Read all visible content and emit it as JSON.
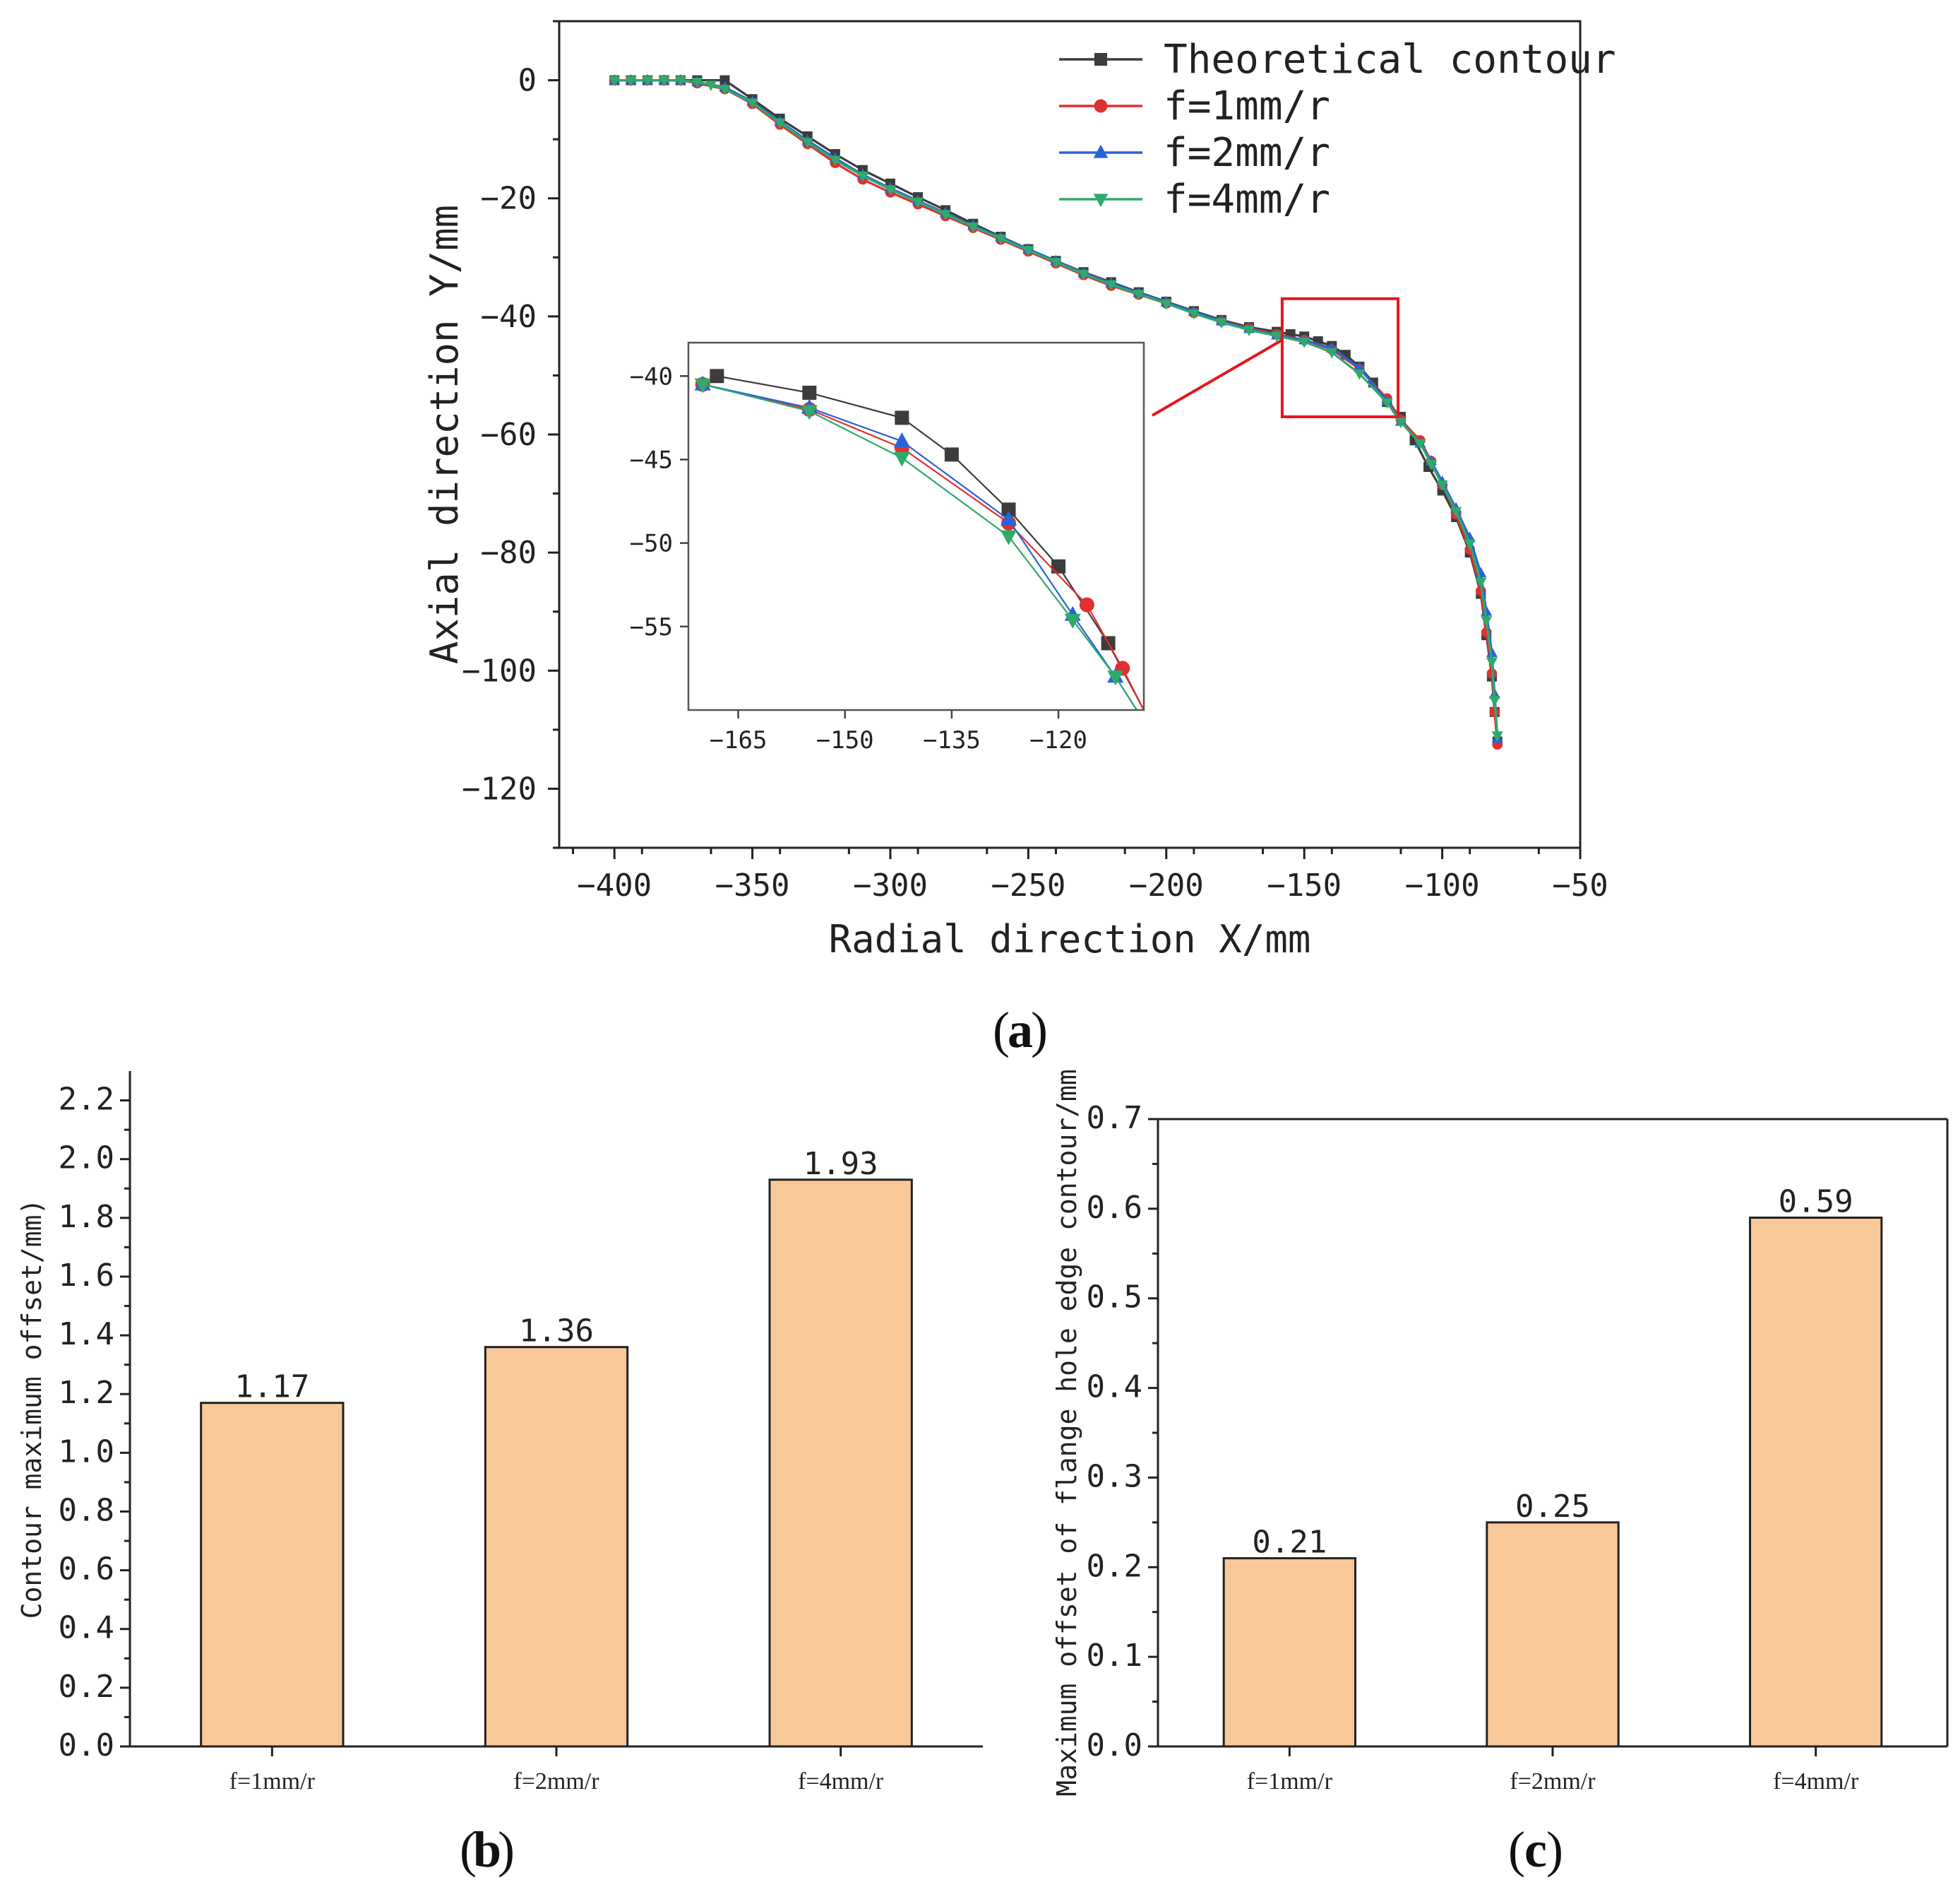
{
  "chart_data": [
    {
      "panel": "(a)",
      "panel_letter": "a",
      "type": "line",
      "xlabel": "Radial direction X/mm",
      "ylabel": "Axial direction Y/mm",
      "xlim": [
        -420,
        -50
      ],
      "ylim": [
        -130,
        10
      ],
      "xticks": [
        -400,
        -350,
        -300,
        -250,
        -200,
        -150,
        -100,
        -50
      ],
      "yticks": [
        0,
        -20,
        -40,
        -60,
        -80,
        -100,
        -120
      ],
      "legend_position": "top-right",
      "series": [
        {
          "name": "Theoretical contour",
          "color": "#3c3c3c",
          "marker": "square",
          "x": [
            -400,
            -394,
            -388,
            -382,
            -376,
            -370,
            -360,
            -350,
            -340,
            -330,
            -320,
            -310,
            -300,
            -290,
            -280,
            -270,
            -260,
            -250,
            -240,
            -230,
            -220,
            -210,
            -200,
            -190,
            -180,
            -170,
            -160,
            -155,
            -150,
            -145,
            -140,
            -135,
            -130,
            -125,
            -120,
            -115,
            -110,
            -105,
            -100,
            -95,
            -90,
            -86,
            -84,
            -82,
            -81,
            -80
          ],
          "y": [
            0,
            0,
            0,
            0,
            0,
            0,
            0,
            -3.2,
            -6.5,
            -9.5,
            -12.5,
            -15.2,
            -17.5,
            -19.8,
            -22,
            -24.3,
            -26.5,
            -28.6,
            -30.6,
            -32.5,
            -34.2,
            -35.9,
            -37.5,
            -39.1,
            -40.6,
            -41.8,
            -42.6,
            -43,
            -43.4,
            -44.2,
            -45,
            -46.5,
            -48.5,
            -51.2,
            -54.5,
            -57,
            -61,
            -65.5,
            -69.5,
            -74,
            -80,
            -87,
            -94,
            -101,
            -107,
            -112
          ]
        },
        {
          "name": "f=1mm/r",
          "color": "#e03030",
          "marker": "circle",
          "x": [
            -400,
            -394,
            -388,
            -382,
            -376,
            -370,
            -360,
            -350,
            -340,
            -330,
            -320,
            -310,
            -300,
            -290,
            -280,
            -270,
            -260,
            -250,
            -240,
            -230,
            -220,
            -210,
            -200,
            -190,
            -180,
            -170,
            -160,
            -150,
            -140,
            -130,
            -120,
            -115,
            -108,
            -104,
            -100,
            -95,
            -90,
            -86,
            -84,
            -82,
            -81,
            -80
          ],
          "y": [
            0,
            0,
            0,
            0,
            0,
            -0.5,
            -1.5,
            -4,
            -7.5,
            -10.8,
            -14,
            -16.8,
            -19,
            -21,
            -23,
            -25,
            -27,
            -29,
            -31,
            -33,
            -34.8,
            -36.3,
            -37.8,
            -39.4,
            -40.8,
            -42,
            -43,
            -44,
            -45.6,
            -48.9,
            -53.9,
            -57.5,
            -61,
            -64.5,
            -68.5,
            -73.5,
            -79.5,
            -86.5,
            -93.5,
            -100.5,
            -107,
            -112.5
          ]
        },
        {
          "name": "f=2mm/r",
          "color": "#2b63d6",
          "marker": "triangle-up",
          "x": [
            -400,
            -394,
            -388,
            -382,
            -376,
            -370,
            -360,
            -350,
            -340,
            -330,
            -320,
            -310,
            -300,
            -290,
            -280,
            -270,
            -260,
            -250,
            -240,
            -230,
            -220,
            -210,
            -200,
            -190,
            -180,
            -170,
            -160,
            -150,
            -140,
            -130,
            -120,
            -115,
            -108,
            -104,
            -100,
            -95,
            -90,
            -86,
            -84,
            -82,
            -81,
            -80
          ],
          "y": [
            0,
            0,
            0,
            0,
            0,
            -0.3,
            -1.2,
            -3.6,
            -7,
            -10.2,
            -13.2,
            -16,
            -18.3,
            -20.4,
            -22.5,
            -24.6,
            -26.6,
            -28.6,
            -30.6,
            -32.6,
            -34.4,
            -36,
            -37.6,
            -39.2,
            -40.8,
            -42.1,
            -43.2,
            -44,
            -45.4,
            -48.7,
            -54.3,
            -57.8,
            -61.5,
            -64.5,
            -68,
            -72.5,
            -77.5,
            -83.5,
            -90,
            -97,
            -104,
            -111.5
          ]
        },
        {
          "name": "f=4mm/r",
          "color": "#2eaa6a",
          "marker": "triangle-down",
          "x": [
            -400,
            -394,
            -388,
            -382,
            -376,
            -370,
            -365,
            -360,
            -350,
            -340,
            -330,
            -320,
            -310,
            -300,
            -290,
            -280,
            -270,
            -260,
            -250,
            -240,
            -230,
            -220,
            -210,
            -200,
            -190,
            -180,
            -170,
            -160,
            -150,
            -140,
            -130,
            -120,
            -115,
            -108,
            -104,
            -100,
            -95,
            -90,
            -86,
            -84,
            -82,
            -81,
            -80
          ],
          "y": [
            0,
            0,
            0,
            0,
            0,
            -0.3,
            -0.8,
            -1.5,
            -3.8,
            -7.2,
            -10.5,
            -13.5,
            -16.2,
            -18.5,
            -20.6,
            -22.7,
            -24.8,
            -26.8,
            -28.8,
            -30.8,
            -32.8,
            -34.6,
            -36.2,
            -37.8,
            -39.5,
            -41,
            -42.3,
            -43.3,
            -44.3,
            -46.1,
            -49.7,
            -54.6,
            -57.9,
            -61.5,
            -65,
            -68.5,
            -73,
            -78.5,
            -85,
            -91.5,
            -98.5,
            -105,
            -111
          ]
        }
      ],
      "inset": {
        "xlim": [
          -172,
          -108
        ],
        "ylim": [
          -60,
          -38
        ],
        "xticks": [
          -165,
          -150,
          -135,
          -120
        ],
        "yticks": [
          -40,
          -45,
          -50,
          -55
        ],
        "zoom_box": {
          "xlim": [
            -158,
            -116
          ],
          "ylim": [
            -57,
            -37
          ]
        },
        "series": [
          {
            "name": "Theoretical contour",
            "x": [
              -168,
              -155,
              -142,
              -135,
              -127,
              -120,
              -113,
              -108
            ],
            "y": [
              -40,
              -41,
              -42.5,
              -44.7,
              -48,
              -51.4,
              -56,
              -60
            ]
          },
          {
            "name": "f=1mm/r",
            "x": [
              -170,
              -155,
              -142,
              -127,
              -116,
              -111,
              -108
            ],
            "y": [
              -40.5,
              -42,
              -44.3,
              -48.8,
              -53.7,
              -57.5,
              -60
            ]
          },
          {
            "name": "f=2mm/r",
            "x": [
              -170,
              -155,
              -142,
              -127,
              -118,
              -112,
              -109
            ],
            "y": [
              -40.5,
              -41.9,
              -43.9,
              -48.6,
              -54.3,
              -58,
              -60
            ]
          },
          {
            "name": "f=4mm/r",
            "x": [
              -170,
              -155,
              -142,
              -127,
              -118,
              -112,
              -109
            ],
            "y": [
              -40.5,
              -42.1,
              -44.9,
              -49.6,
              -54.6,
              -58,
              -60
            ]
          }
        ]
      }
    },
    {
      "panel": "(b)",
      "panel_letter": "b",
      "type": "bar",
      "categories": [
        "f=1mm/r",
        "f=2mm/r",
        "f=4mm/r"
      ],
      "values": [
        1.17,
        1.36,
        1.93
      ],
      "value_labels": [
        "1.17",
        "1.36",
        "1.93"
      ],
      "ylabel": "Contour maximum offset/mm)",
      "ylim": [
        0,
        2.3
      ],
      "yticks": [
        "0.0",
        "0.2",
        "0.4",
        "0.6",
        "0.8",
        "1.0",
        "1.2",
        "1.4",
        "1.6",
        "1.8",
        "2.0",
        "2.2"
      ],
      "bar_color": "#f8c898"
    },
    {
      "panel": "(c)",
      "panel_letter": "c",
      "type": "bar",
      "categories": [
        "f=1mm/r",
        "f=2mm/r",
        "f=4mm/r"
      ],
      "values": [
        0.21,
        0.25,
        0.59
      ],
      "value_labels": [
        "0.21",
        "0.25",
        "0.59"
      ],
      "ylabel": "Maximum offset of flange hole edge contour/mm",
      "ylim": [
        0,
        0.7
      ],
      "yticks": [
        "0.0",
        "0.1",
        "0.2",
        "0.3",
        "0.4",
        "0.5",
        "0.6",
        "0.7"
      ],
      "bar_color": "#f8c898"
    }
  ]
}
